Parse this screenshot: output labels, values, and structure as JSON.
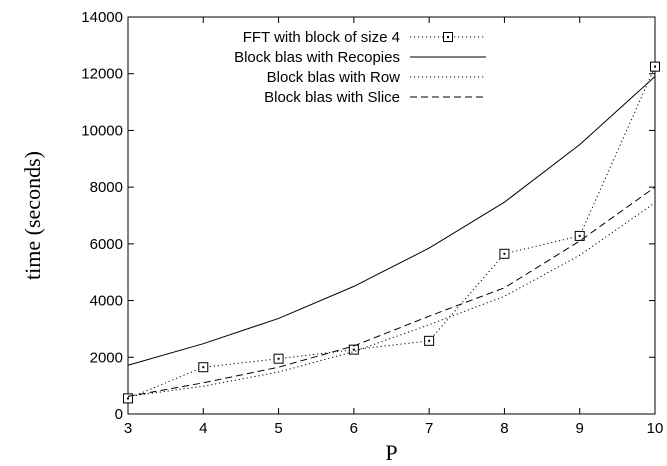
{
  "chart_data": {
    "type": "line",
    "xlabel": "P",
    "ylabel": "time (seconds)",
    "xlim": [
      3,
      10
    ],
    "ylim": [
      0,
      14000
    ],
    "x_ticks": [
      3,
      4,
      5,
      6,
      7,
      8,
      9,
      10
    ],
    "y_ticks": [
      0,
      2000,
      4000,
      6000,
      8000,
      10000,
      12000,
      14000
    ],
    "grid": false,
    "legend_position": "top-center",
    "series": [
      {
        "name": "FFT with block of size 4",
        "style": "dotted",
        "marker": "square",
        "x": [
          3,
          4,
          5,
          6,
          7,
          8,
          9,
          10
        ],
        "y": [
          550,
          1650,
          1950,
          2270,
          2580,
          5650,
          6280,
          12250
        ]
      },
      {
        "name": "Block blas with Recopies",
        "style": "solid",
        "marker": "none",
        "x": [
          3,
          4,
          5,
          6,
          7,
          8,
          9,
          10
        ],
        "y": [
          1720,
          2480,
          3370,
          4500,
          5850,
          7470,
          9500,
          11900
        ]
      },
      {
        "name": "Block blas with Row",
        "style": "dotted",
        "marker": "none",
        "x": [
          3,
          4,
          5,
          6,
          7,
          8,
          9,
          10
        ],
        "y": [
          620,
          980,
          1480,
          2200,
          3150,
          4150,
          5600,
          7450
        ]
      },
      {
        "name": "Block blas with Slice",
        "style": "dashed",
        "marker": "none",
        "x": [
          3,
          4,
          5,
          6,
          7,
          8,
          9,
          10
        ],
        "y": [
          620,
          1100,
          1650,
          2400,
          3450,
          4450,
          6100,
          8000
        ]
      }
    ]
  }
}
